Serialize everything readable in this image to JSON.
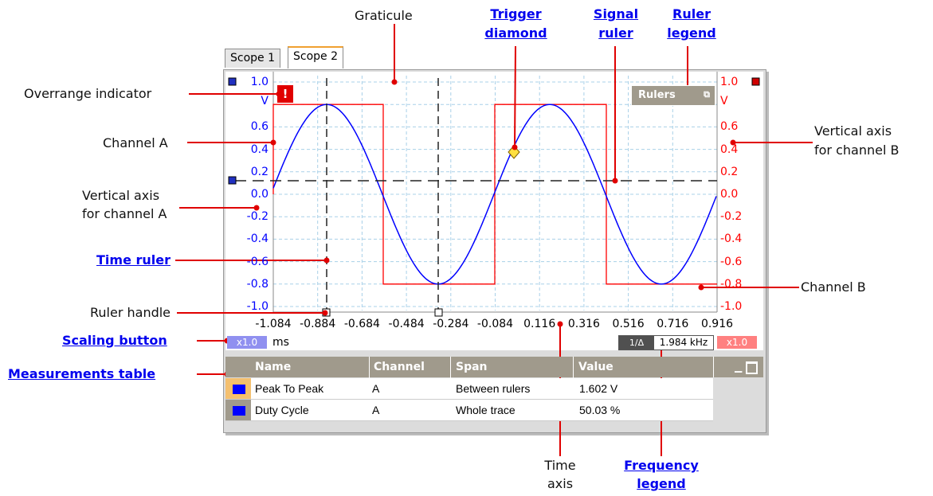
{
  "tabs": [
    "Scope 1",
    "Scope 2"
  ],
  "annotations": {
    "graticule": "Graticule",
    "overrange": "Overrange indicator",
    "channel_a": "Channel A",
    "vaxis_a_1": "Vertical axis",
    "vaxis_a_2": "for channel A",
    "ruler_handle": "Ruler handle",
    "channel_b": "Channel B",
    "vaxis_b_1": "Vertical axis",
    "vaxis_b_2": "for channel B",
    "time_axis_1": "Time",
    "time_axis_2": "axis"
  },
  "links": {
    "trigger_1": "Trigger",
    "trigger_2": "diamond",
    "signal_1": "Signal",
    "signal_2": "ruler",
    "legend_1": "Ruler",
    "legend_2": "legend",
    "time_ruler": "Time ruler",
    "scaling": "Scaling button",
    "measurements": "Measurements table",
    "freq_1": "Frequency",
    "freq_2": "legend"
  },
  "axis_a_ticks": [
    "1.0",
    "0.6",
    "0.4",
    "0.2",
    "0.0",
    "-0.2",
    "-0.4",
    "-0.6",
    "-0.8",
    "-1.0"
  ],
  "axis_b_ticks": [
    "1.0",
    "0.6",
    "0.4",
    "0.2",
    "0.0",
    "-0.2",
    "-0.4",
    "-0.6",
    "-0.8",
    "-1.0"
  ],
  "axis_a_unit": "V",
  "axis_b_unit": "V",
  "x_ticks": [
    "-1.084",
    "-0.884",
    "-0.684",
    "-0.484",
    "-0.284",
    "-0.084",
    "0.116",
    "0.316",
    "0.516",
    "0.716",
    "0.916"
  ],
  "x_unit": "ms",
  "rulers_button": "Rulers",
  "scale_a": "x1.0",
  "scale_b": "x1.0",
  "freq_toggle": "1/Δ",
  "freq_value": "1.984 kHz",
  "overrange_symbol": "!",
  "table": {
    "headers": [
      "Name",
      "Channel",
      "Span",
      "Value"
    ],
    "rows": [
      {
        "name": "Peak To Peak",
        "channel": "A",
        "span": "Between rulers",
        "value": "1.602 V"
      },
      {
        "name": "Duty Cycle",
        "channel": "A",
        "span": "Whole trace",
        "value": "50.03 %"
      }
    ]
  },
  "colors": {
    "channel_a": "#0000ff",
    "channel_b": "#ff0000",
    "annotation": "#e00000",
    "grid": "#a8d0e8"
  }
}
